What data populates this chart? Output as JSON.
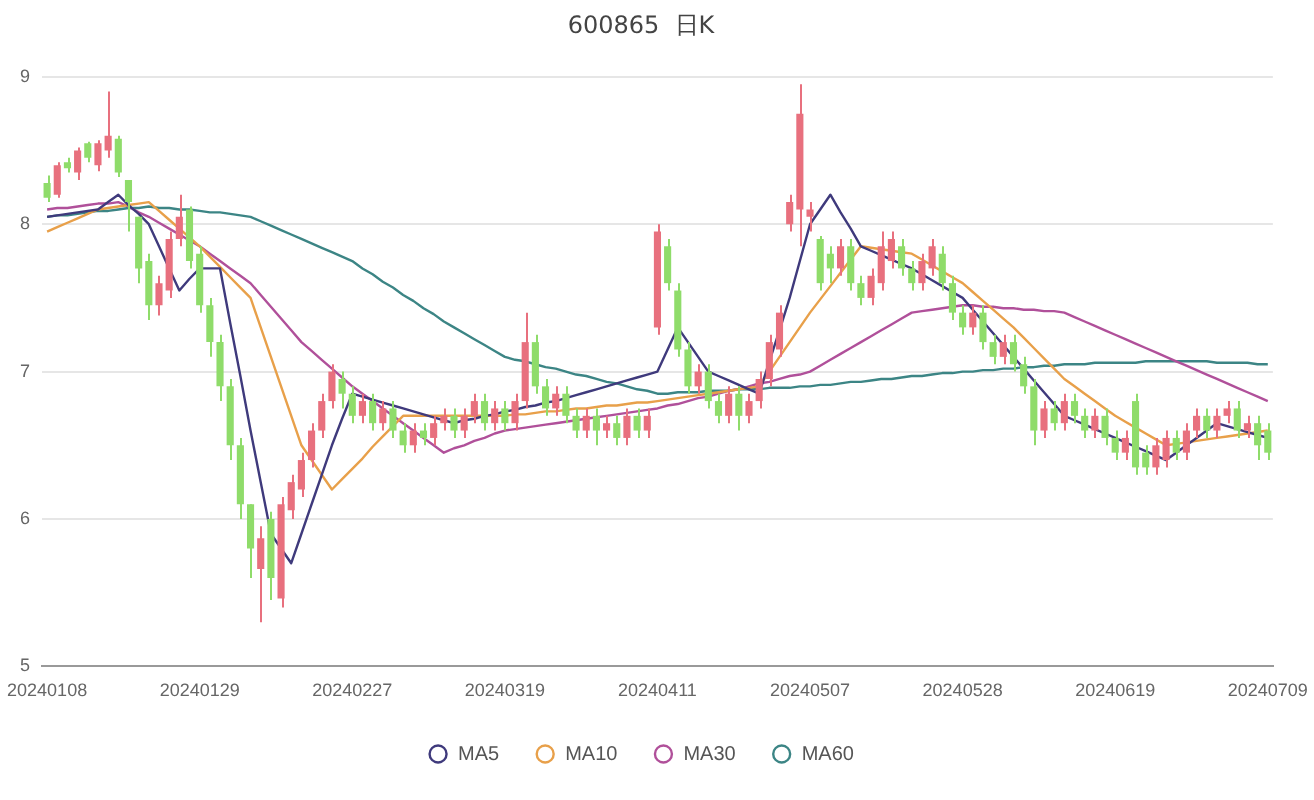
{
  "chart_data": {
    "type": "candlestick",
    "title": "600865  日K",
    "categories": [
      "20240108",
      null,
      null,
      null,
      null,
      null,
      null,
      null,
      null,
      null,
      null,
      null,
      null,
      null,
      null,
      "20240129",
      null,
      null,
      null,
      null,
      null,
      null,
      null,
      null,
      null,
      null,
      null,
      null,
      null,
      null,
      "20240227",
      null,
      null,
      null,
      null,
      null,
      null,
      null,
      null,
      null,
      null,
      null,
      null,
      null,
      null,
      "20240319",
      null,
      null,
      null,
      null,
      null,
      null,
      null,
      null,
      null,
      null,
      null,
      null,
      null,
      null,
      "20240411",
      null,
      null,
      null,
      null,
      null,
      null,
      null,
      null,
      null,
      null,
      null,
      null,
      null,
      null,
      "20240507",
      null,
      null,
      null,
      null,
      null,
      null,
      null,
      null,
      null,
      null,
      null,
      null,
      null,
      null,
      "20240528",
      null,
      null,
      null,
      null,
      null,
      null,
      null,
      null,
      null,
      null,
      null,
      null,
      null,
      null,
      "20240619",
      null,
      null,
      null,
      null,
      null,
      null,
      null,
      null,
      null,
      null,
      null,
      null,
      null,
      null,
      "20240709"
    ],
    "ohlc": [
      [
        8.28,
        8.33,
        8.15,
        8.18
      ],
      [
        8.2,
        8.42,
        8.18,
        8.4
      ],
      [
        8.42,
        8.45,
        8.35,
        8.38
      ],
      [
        8.35,
        8.52,
        8.3,
        8.5
      ],
      [
        8.55,
        8.56,
        8.42,
        8.45
      ],
      [
        8.4,
        8.57,
        8.36,
        8.55
      ],
      [
        8.5,
        8.9,
        8.45,
        8.6
      ],
      [
        8.58,
        8.6,
        8.32,
        8.35
      ],
      [
        8.3,
        8.3,
        7.95,
        8.15
      ],
      [
        8.05,
        8.05,
        7.6,
        7.7
      ],
      [
        7.75,
        7.8,
        7.35,
        7.45
      ],
      [
        7.45,
        7.65,
        7.38,
        7.6
      ],
      [
        7.55,
        7.95,
        7.5,
        7.9
      ],
      [
        7.9,
        8.2,
        7.85,
        8.05
      ],
      [
        8.1,
        8.12,
        7.7,
        7.75
      ],
      [
        7.8,
        7.85,
        7.4,
        7.45
      ],
      [
        7.45,
        7.5,
        7.1,
        7.2
      ],
      [
        7.2,
        7.25,
        6.8,
        6.9
      ],
      [
        6.9,
        6.95,
        6.4,
        6.5
      ],
      [
        6.5,
        6.55,
        6.0,
        6.1
      ],
      [
        6.1,
        6.1,
        5.6,
        5.8
      ],
      [
        5.66,
        5.95,
        5.3,
        5.87
      ],
      [
        6.0,
        6.05,
        5.45,
        5.6
      ],
      [
        5.46,
        6.15,
        5.4,
        6.1
      ],
      [
        6.06,
        6.3,
        6.0,
        6.25
      ],
      [
        6.2,
        6.45,
        6.15,
        6.4
      ],
      [
        6.4,
        6.65,
        6.35,
        6.6
      ],
      [
        6.6,
        6.85,
        6.55,
        6.8
      ],
      [
        6.8,
        7.05,
        6.75,
        7.0
      ],
      [
        6.95,
        7.0,
        6.75,
        6.85
      ],
      [
        6.85,
        6.9,
        6.65,
        6.7
      ],
      [
        6.7,
        6.85,
        6.65,
        6.8
      ],
      [
        6.8,
        6.85,
        6.6,
        6.65
      ],
      [
        6.65,
        6.8,
        6.6,
        6.75
      ],
      [
        6.75,
        6.8,
        6.55,
        6.6
      ],
      [
        6.6,
        6.65,
        6.45,
        6.5
      ],
      [
        6.5,
        6.65,
        6.45,
        6.6
      ],
      [
        6.6,
        6.65,
        6.5,
        6.55
      ],
      [
        6.55,
        6.7,
        6.5,
        6.65
      ],
      [
        6.65,
        6.75,
        6.6,
        6.7
      ],
      [
        6.7,
        6.75,
        6.55,
        6.6
      ],
      [
        6.6,
        6.75,
        6.55,
        6.7
      ],
      [
        6.7,
        6.85,
        6.65,
        6.8
      ],
      [
        6.8,
        6.85,
        6.6,
        6.65
      ],
      [
        6.65,
        6.8,
        6.6,
        6.75
      ],
      [
        6.75,
        6.8,
        6.6,
        6.65
      ],
      [
        6.65,
        6.85,
        6.6,
        6.8
      ],
      [
        6.8,
        7.4,
        6.75,
        7.2
      ],
      [
        7.2,
        7.25,
        6.85,
        6.9
      ],
      [
        6.9,
        6.95,
        6.7,
        6.75
      ],
      [
        6.75,
        6.9,
        6.7,
        6.85
      ],
      [
        6.85,
        6.9,
        6.65,
        6.7
      ],
      [
        6.7,
        6.75,
        6.55,
        6.6
      ],
      [
        6.6,
        6.75,
        6.55,
        6.7
      ],
      [
        6.7,
        6.75,
        6.5,
        6.6
      ],
      [
        6.6,
        6.7,
        6.55,
        6.65
      ],
      [
        6.65,
        6.7,
        6.5,
        6.55
      ],
      [
        6.55,
        6.75,
        6.5,
        6.7
      ],
      [
        6.7,
        6.75,
        6.55,
        6.6
      ],
      [
        6.6,
        6.75,
        6.55,
        6.7
      ],
      [
        7.3,
        8.0,
        7.25,
        7.95
      ],
      [
        7.85,
        7.9,
        7.55,
        7.6
      ],
      [
        7.55,
        7.6,
        7.1,
        7.15
      ],
      [
        7.15,
        7.2,
        6.85,
        6.9
      ],
      [
        6.9,
        7.05,
        6.85,
        7.0
      ],
      [
        7.0,
        7.05,
        6.75,
        6.8
      ],
      [
        6.8,
        6.85,
        6.65,
        6.7
      ],
      [
        6.7,
        6.9,
        6.65,
        6.85
      ],
      [
        6.85,
        6.9,
        6.6,
        6.7
      ],
      [
        6.7,
        6.85,
        6.65,
        6.8
      ],
      [
        6.8,
        7.0,
        6.75,
        6.95
      ],
      [
        6.95,
        7.25,
        6.9,
        7.2
      ],
      [
        7.15,
        7.45,
        7.1,
        7.4
      ],
      [
        8.0,
        8.2,
        7.95,
        8.15
      ],
      [
        8.1,
        8.95,
        7.85,
        8.75
      ],
      [
        8.05,
        8.15,
        7.95,
        8.1
      ],
      [
        7.9,
        7.92,
        7.55,
        7.6
      ],
      [
        7.8,
        7.85,
        7.6,
        7.7
      ],
      [
        7.7,
        7.9,
        7.65,
        7.85
      ],
      [
        7.85,
        7.9,
        7.55,
        7.6
      ],
      [
        7.6,
        7.65,
        7.45,
        7.5
      ],
      [
        7.5,
        7.7,
        7.45,
        7.65
      ],
      [
        7.6,
        7.95,
        7.55,
        7.85
      ],
      [
        7.75,
        7.95,
        7.7,
        7.9
      ],
      [
        7.85,
        7.9,
        7.65,
        7.7
      ],
      [
        7.7,
        7.75,
        7.55,
        7.6
      ],
      [
        7.6,
        7.8,
        7.55,
        7.75
      ],
      [
        7.7,
        7.9,
        7.65,
        7.85
      ],
      [
        7.8,
        7.85,
        7.55,
        7.6
      ],
      [
        7.6,
        7.65,
        7.35,
        7.4
      ],
      [
        7.4,
        7.45,
        7.25,
        7.3
      ],
      [
        7.3,
        7.45,
        7.25,
        7.4
      ],
      [
        7.4,
        7.45,
        7.15,
        7.2
      ],
      [
        7.2,
        7.25,
        7.05,
        7.1
      ],
      [
        7.1,
        7.25,
        7.05,
        7.2
      ],
      [
        7.2,
        7.25,
        7.0,
        7.05
      ],
      [
        7.05,
        7.1,
        6.85,
        6.9
      ],
      [
        6.9,
        6.95,
        6.5,
        6.6
      ],
      [
        6.6,
        6.8,
        6.55,
        6.75
      ],
      [
        6.75,
        6.8,
        6.6,
        6.65
      ],
      [
        6.65,
        6.85,
        6.6,
        6.8
      ],
      [
        6.8,
        6.85,
        6.65,
        6.7
      ],
      [
        6.7,
        6.75,
        6.55,
        6.6
      ],
      [
        6.6,
        6.75,
        6.55,
        6.7
      ],
      [
        6.7,
        6.75,
        6.5,
        6.55
      ],
      [
        6.55,
        6.6,
        6.4,
        6.45
      ],
      [
        6.45,
        6.6,
        6.4,
        6.55
      ],
      [
        6.8,
        6.85,
        6.3,
        6.35
      ],
      [
        6.45,
        6.5,
        6.3,
        6.35
      ],
      [
        6.35,
        6.55,
        6.3,
        6.5
      ],
      [
        6.4,
        6.6,
        6.35,
        6.55
      ],
      [
        6.55,
        6.6,
        6.4,
        6.45
      ],
      [
        6.45,
        6.65,
        6.4,
        6.6
      ],
      [
        6.6,
        6.75,
        6.55,
        6.7
      ],
      [
        6.7,
        6.75,
        6.55,
        6.6
      ],
      [
        6.6,
        6.75,
        6.55,
        6.7
      ],
      [
        6.7,
        6.8,
        6.65,
        6.75
      ],
      [
        6.75,
        6.8,
        6.55,
        6.6
      ],
      [
        6.6,
        6.7,
        6.55,
        6.65
      ],
      [
        6.65,
        6.7,
        6.4,
        6.5
      ],
      [
        6.6,
        6.65,
        6.4,
        6.45
      ]
    ],
    "colors": [
      "#8fdc6a",
      "#e8707e",
      "#8fdc6a",
      "#e8707e",
      "#8fdc6a",
      "#e8707e",
      "#e8707e",
      "#8fdc6a",
      "#8fdc6a",
      "#8fdc6a",
      "#8fdc6a",
      "#e8707e",
      "#e8707e",
      "#e8707e",
      "#8fdc6a",
      "#8fdc6a",
      "#8fdc6a",
      "#8fdc6a",
      "#8fdc6a",
      "#8fdc6a",
      "#8fdc6a",
      "#e8707e",
      "#8fdc6a",
      "#e8707e",
      "#e8707e",
      "#e8707e",
      "#e8707e",
      "#e8707e",
      "#e8707e",
      "#8fdc6a",
      "#8fdc6a",
      "#e8707e",
      "#8fdc6a",
      "#e8707e",
      "#8fdc6a",
      "#8fdc6a",
      "#e8707e",
      "#8fdc6a",
      "#e8707e",
      "#e8707e",
      "#8fdc6a",
      "#e8707e",
      "#e8707e",
      "#8fdc6a",
      "#e8707e",
      "#8fdc6a",
      "#e8707e",
      "#e8707e",
      "#8fdc6a",
      "#8fdc6a",
      "#e8707e",
      "#8fdc6a",
      "#8fdc6a",
      "#e8707e",
      "#8fdc6a",
      "#e8707e",
      "#8fdc6a",
      "#e8707e",
      "#8fdc6a",
      "#e8707e",
      "#e8707e",
      "#8fdc6a",
      "#8fdc6a",
      "#8fdc6a",
      "#e8707e",
      "#8fdc6a",
      "#8fdc6a",
      "#e8707e",
      "#8fdc6a",
      "#e8707e",
      "#e8707e",
      "#e8707e",
      "#e8707e",
      "#e8707e",
      "#e8707e",
      "#e8707e",
      "#8fdc6a",
      "#8fdc6a",
      "#e8707e",
      "#8fdc6a",
      "#8fdc6a",
      "#e8707e",
      "#e8707e",
      "#e8707e",
      "#8fdc6a",
      "#8fdc6a",
      "#e8707e",
      "#e8707e",
      "#8fdc6a",
      "#8fdc6a",
      "#8fdc6a",
      "#e8707e",
      "#8fdc6a",
      "#8fdc6a",
      "#e8707e",
      "#8fdc6a",
      "#8fdc6a",
      "#8fdc6a",
      "#e8707e",
      "#8fdc6a",
      "#e8707e",
      "#8fdc6a",
      "#8fdc6a",
      "#e8707e",
      "#8fdc6a",
      "#8fdc6a",
      "#e8707e",
      "#8fdc6a",
      "#8fdc6a",
      "#e8707e",
      "#e8707e",
      "#8fdc6a",
      "#e8707e",
      "#e8707e",
      "#8fdc6a",
      "#e8707e",
      "#e8707e",
      "#8fdc6a",
      "#e8707e",
      "#8fdc6a",
      "#8fdc6a"
    ],
    "series": [
      {
        "name": "MA5",
        "type": "line",
        "color": "#3f3a7c",
        "values": [
          8.05,
          8.06,
          8.07,
          8.08,
          8.09,
          8.1,
          8.15,
          8.2,
          8.13,
          8.07,
          8.0,
          7.85,
          7.7,
          7.55,
          7.63,
          7.7,
          7.7,
          7.7,
          7.33,
          6.97,
          6.6,
          6.25,
          5.9,
          5.8,
          5.7,
          5.9,
          6.1,
          6.3,
          6.5,
          6.68,
          6.85,
          6.83,
          6.81,
          6.79,
          6.77,
          6.75,
          6.73,
          6.71,
          6.69,
          6.67,
          6.65,
          6.67,
          6.68,
          6.7,
          6.71,
          6.73,
          6.74,
          6.76,
          6.77,
          6.79,
          6.8,
          6.82,
          6.84,
          6.86,
          6.88,
          6.9,
          6.92,
          6.94,
          6.96,
          6.98,
          7.0,
          7.15,
          7.3,
          7.2,
          7.1,
          7.0,
          6.97,
          6.94,
          6.91,
          6.88,
          6.85,
          7.07,
          7.28,
          7.5,
          7.75,
          8.0,
          8.1,
          8.2,
          8.08,
          7.97,
          7.85,
          7.82,
          7.79,
          7.76,
          7.73,
          7.7,
          7.66,
          7.62,
          7.58,
          7.54,
          7.5,
          7.42,
          7.34,
          7.26,
          7.18,
          7.1,
          7.02,
          6.94,
          6.86,
          6.78,
          6.7,
          6.67,
          6.64,
          6.61,
          6.58,
          6.55,
          6.52,
          6.49,
          6.46,
          6.43,
          6.4,
          6.45,
          6.5,
          6.55,
          6.6,
          6.65,
          6.63,
          6.61,
          6.59,
          6.57,
          6.55
        ]
      },
      {
        "name": "MA10",
        "type": "line",
        "color": "#e8a04a",
        "values": [
          7.95,
          7.98,
          8.01,
          8.04,
          8.07,
          8.1,
          8.11,
          8.12,
          8.13,
          8.14,
          8.15,
          8.09,
          8.03,
          7.97,
          7.91,
          7.85,
          7.78,
          7.71,
          7.64,
          7.57,
          7.5,
          7.3,
          7.1,
          6.9,
          6.7,
          6.5,
          6.4,
          6.3,
          6.2,
          6.27,
          6.34,
          6.41,
          6.49,
          6.56,
          6.63,
          6.7,
          6.7,
          6.7,
          6.7,
          6.7,
          6.7,
          6.7,
          6.7,
          6.7,
          6.7,
          6.7,
          6.71,
          6.71,
          6.72,
          6.73,
          6.73,
          6.74,
          6.75,
          6.75,
          6.76,
          6.77,
          6.77,
          6.78,
          6.79,
          6.79,
          6.8,
          6.81,
          6.82,
          6.83,
          6.84,
          6.85,
          6.86,
          6.87,
          6.88,
          6.89,
          6.9,
          7.0,
          7.1,
          7.2,
          7.3,
          7.4,
          7.49,
          7.58,
          7.67,
          7.76,
          7.85,
          7.84,
          7.83,
          7.82,
          7.81,
          7.8,
          7.76,
          7.72,
          7.68,
          7.64,
          7.6,
          7.54,
          7.48,
          7.42,
          7.36,
          7.3,
          7.23,
          7.16,
          7.09,
          7.02,
          6.95,
          6.9,
          6.85,
          6.8,
          6.75,
          6.7,
          6.66,
          6.62,
          6.58,
          6.54,
          6.5,
          6.51,
          6.52,
          6.53,
          6.54,
          6.55,
          6.56,
          6.57,
          6.58,
          6.59,
          6.6
        ]
      },
      {
        "name": "MA30",
        "type": "line",
        "color": "#b0509a",
        "values": [
          8.1,
          8.11,
          8.11,
          8.12,
          8.13,
          8.14,
          8.14,
          8.15,
          8.12,
          8.08,
          8.05,
          8.01,
          7.97,
          7.93,
          7.89,
          7.85,
          7.8,
          7.75,
          7.7,
          7.65,
          7.6,
          7.52,
          7.44,
          7.36,
          7.28,
          7.2,
          7.14,
          7.08,
          7.02,
          6.96,
          6.9,
          6.85,
          6.8,
          6.75,
          6.7,
          6.65,
          6.6,
          6.55,
          6.5,
          6.45,
          6.48,
          6.5,
          6.53,
          6.55,
          6.58,
          6.6,
          6.61,
          6.62,
          6.63,
          6.64,
          6.65,
          6.66,
          6.67,
          6.68,
          6.69,
          6.7,
          6.71,
          6.72,
          6.73,
          6.74,
          6.75,
          6.77,
          6.78,
          6.8,
          6.82,
          6.83,
          6.85,
          6.87,
          6.88,
          6.9,
          6.92,
          6.93,
          6.95,
          6.97,
          6.98,
          7.0,
          7.04,
          7.08,
          7.12,
          7.16,
          7.2,
          7.24,
          7.28,
          7.32,
          7.36,
          7.4,
          7.41,
          7.42,
          7.43,
          7.44,
          7.45,
          7.45,
          7.44,
          7.44,
          7.43,
          7.43,
          7.42,
          7.42,
          7.41,
          7.41,
          7.4,
          7.37,
          7.34,
          7.31,
          7.28,
          7.25,
          7.22,
          7.19,
          7.16,
          7.13,
          7.1,
          7.07,
          7.04,
          7.01,
          6.98,
          6.95,
          6.92,
          6.89,
          6.86,
          6.83,
          6.8
        ]
      },
      {
        "name": "MA60",
        "type": "line",
        "color": "#3c8585",
        "values": [
          8.05,
          8.06,
          8.06,
          8.07,
          8.08,
          8.09,
          8.09,
          8.1,
          8.11,
          8.11,
          8.12,
          8.11,
          8.11,
          8.1,
          8.1,
          8.09,
          8.08,
          8.08,
          8.07,
          8.06,
          8.05,
          8.02,
          7.99,
          7.96,
          7.93,
          7.9,
          7.87,
          7.84,
          7.81,
          7.78,
          7.75,
          7.7,
          7.66,
          7.61,
          7.57,
          7.52,
          7.48,
          7.43,
          7.39,
          7.34,
          7.3,
          7.26,
          7.22,
          7.18,
          7.14,
          7.1,
          7.08,
          7.07,
          7.05,
          7.03,
          7.02,
          7.0,
          6.98,
          6.97,
          6.95,
          6.93,
          6.92,
          6.9,
          6.88,
          6.87,
          6.85,
          6.85,
          6.86,
          6.86,
          6.86,
          6.87,
          6.87,
          6.87,
          6.88,
          6.88,
          6.88,
          6.89,
          6.89,
          6.89,
          6.9,
          6.9,
          6.91,
          6.91,
          6.92,
          6.93,
          6.93,
          6.94,
          6.95,
          6.95,
          6.96,
          6.97,
          6.97,
          6.98,
          6.99,
          6.99,
          7.0,
          7.0,
          7.01,
          7.01,
          7.02,
          7.02,
          7.03,
          7.03,
          7.04,
          7.04,
          7.05,
          7.05,
          7.05,
          7.06,
          7.06,
          7.06,
          7.06,
          7.06,
          7.07,
          7.07,
          7.07,
          7.07,
          7.07,
          7.07,
          7.07,
          7.06,
          7.06,
          7.06,
          7.06,
          7.05,
          7.05
        ]
      }
    ],
    "ylim": [
      5,
      9
    ],
    "yticks": [
      5,
      6,
      7,
      8,
      9
    ],
    "grid": "y",
    "legend": "bottom"
  }
}
